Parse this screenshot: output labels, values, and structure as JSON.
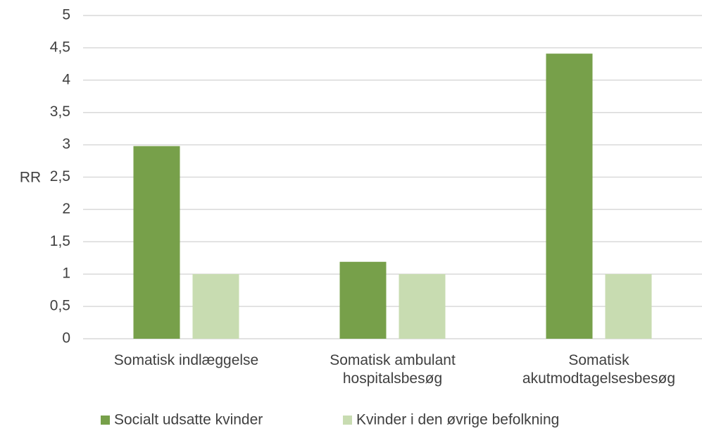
{
  "chart_data": {
    "type": "bar",
    "categories": [
      "Somatisk indlæggelse",
      "Somatisk ambulant hospitalsbesøg",
      "Somatisk akutmodtagelsesbesøg"
    ],
    "series": [
      {
        "name": "Socialt udsatte kvinder",
        "color": "#77a04a",
        "values": [
          2.98,
          1.19,
          4.41
        ]
      },
      {
        "name": "Kvinder i den øvrige befolkning",
        "color": "#c8dcb1",
        "values": [
          1,
          1,
          1
        ]
      }
    ],
    "y_label": "RR",
    "ylim": [
      0,
      5
    ],
    "yticks": [
      0,
      {
        "value": 0.5,
        "label": "0,5"
      },
      1,
      {
        "value": 1.5,
        "label": "1,5"
      },
      2,
      {
        "value": 2.5,
        "label": "2,5"
      },
      3,
      {
        "value": 3.5,
        "label": "3,5"
      },
      4,
      {
        "value": 4.5,
        "label": "4,5"
      },
      5
    ],
    "grid": true,
    "legend": "bottom"
  }
}
